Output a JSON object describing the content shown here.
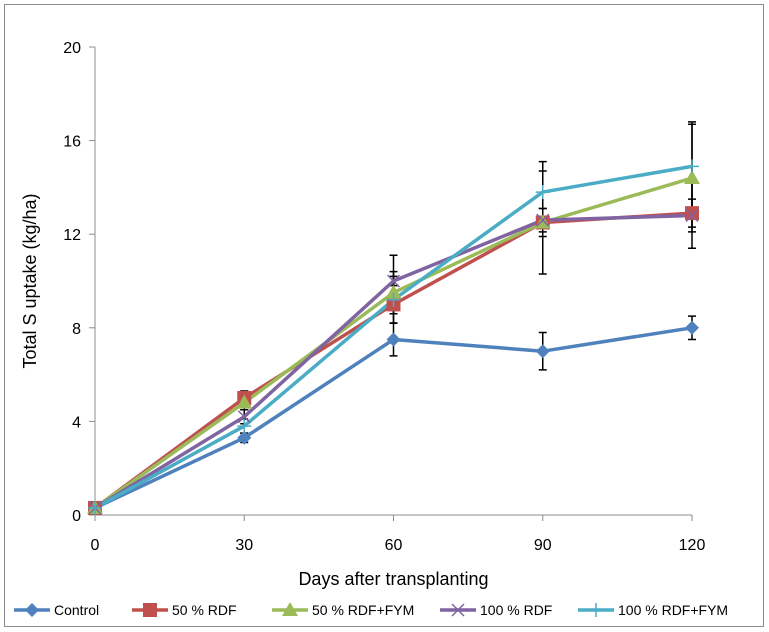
{
  "chart_data": {
    "type": "line",
    "title": "",
    "xlabel": "Days after transplanting",
    "ylabel": "Total S uptake (kg/ha)",
    "x": [
      0,
      30,
      60,
      90,
      120
    ],
    "x_tick_labels": [
      "0",
      "30",
      "60",
      "90",
      "120"
    ],
    "ylim": [
      0,
      20
    ],
    "y_ticks": [
      0,
      4,
      8,
      12,
      16,
      20
    ],
    "y_tick_labels": [
      "0",
      "4",
      "8",
      "12",
      "16",
      "20"
    ],
    "grid": false,
    "legend_position": "bottom",
    "series": [
      {
        "name": "Control",
        "color": "#4f81bd",
        "marker": "diamond",
        "values": [
          0.3,
          3.3,
          7.5,
          7.0,
          8.0
        ],
        "error": [
          0.1,
          0.2,
          0.7,
          0.8,
          0.5
        ]
      },
      {
        "name": "50 % RDF",
        "color": "#c0504d",
        "marker": "square",
        "values": [
          0.3,
          5.0,
          9.0,
          12.5,
          12.9
        ],
        "error": [
          0.1,
          0.3,
          0.8,
          0.6,
          0.6
        ]
      },
      {
        "name": "50 % RDF+FYM",
        "color": "#9bbb59",
        "marker": "triangle",
        "values": [
          0.3,
          4.8,
          9.5,
          12.5,
          14.4
        ],
        "error": [
          0.1,
          0.3,
          0.9,
          2.2,
          2.3
        ]
      },
      {
        "name": "100 % RDF",
        "color": "#8064a2",
        "marker": "x",
        "values": [
          0.3,
          4.2,
          10.0,
          12.6,
          12.8
        ],
        "error": [
          0.1,
          0.3,
          1.1,
          0.5,
          1.4
        ]
      },
      {
        "name": "100 % RDF+FYM",
        "color": "#4bacc6",
        "marker": "plus",
        "values": [
          0.3,
          3.8,
          9.2,
          13.8,
          14.9
        ],
        "error": [
          0.1,
          0.3,
          1.0,
          1.3,
          1.9
        ]
      }
    ]
  }
}
